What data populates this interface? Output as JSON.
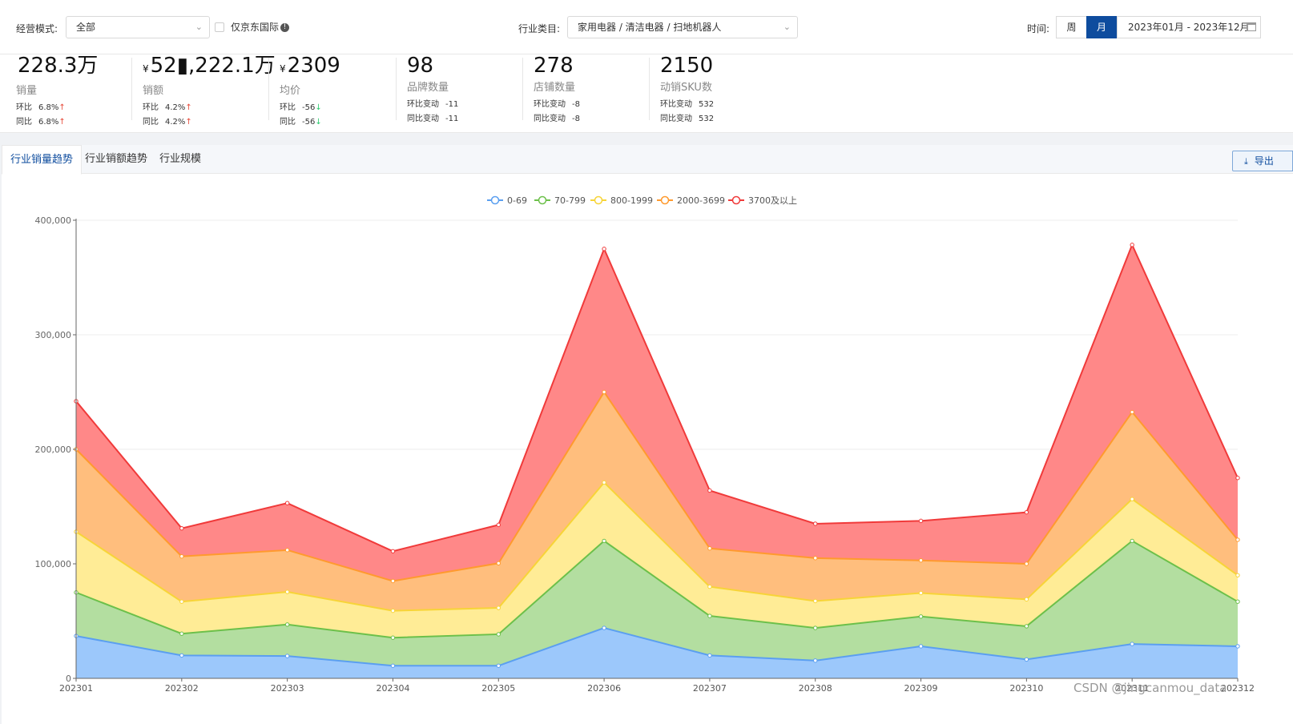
{
  "filters": {
    "mode_label": "经营模式:",
    "mode_value": "全部",
    "jd_intl_label": "仅京东国际",
    "category_label": "行业类目:",
    "category_value": "家用电器 / 清洁电器 / 扫地机器人",
    "time_label": "时间:",
    "week_label": "周",
    "month_label": "月",
    "date_range": "2023年01月 - 2023年12月"
  },
  "stats": [
    {
      "value": "228.3万",
      "currency": "",
      "name": "销量",
      "row1_label": "环比",
      "row1_value": "6.8%",
      "row1_dir": "↑",
      "row2_label": "同比",
      "row2_value": "6.8%",
      "row2_dir": "↑"
    },
    {
      "value": "52▮,222.1万",
      "currency": "¥",
      "name": "销额",
      "row1_label": "环比",
      "row1_value": "4.2%",
      "row1_dir": "↑",
      "row2_label": "同比",
      "row2_value": "4.2%",
      "row2_dir": "↑"
    },
    {
      "value": "2309",
      "currency": "¥",
      "name": "均价",
      "row1_label": "环比",
      "row1_value": "-56",
      "row1_dir": "↓",
      "row2_label": "同比",
      "row2_value": "-56",
      "row2_dir": "↓"
    },
    {
      "value": "98",
      "currency": "",
      "name": "品牌数量",
      "row1_label": "环比变动",
      "row1_value": "-11",
      "row1_dir": "",
      "row2_label": "同比变动",
      "row2_value": "-11",
      "row2_dir": ""
    },
    {
      "value": "278",
      "currency": "",
      "name": "店铺数量",
      "row1_label": "环比变动",
      "row1_value": "-8",
      "row1_dir": "",
      "row2_label": "同比变动",
      "row2_value": "-8",
      "row2_dir": ""
    },
    {
      "value": "2150",
      "currency": "",
      "name": "动销SKU数",
      "row1_label": "环比变动",
      "row1_value": "532",
      "row1_dir": "",
      "row2_label": "同比变动",
      "row2_value": "532",
      "row2_dir": ""
    }
  ],
  "tabs": [
    "行业销量趋势",
    "行业销额趋势",
    "行业规模"
  ],
  "export_label": "导出",
  "watermark": "CSDN @jingcanmou_data",
  "colors": {
    "s0_fill": "#9cc8fb",
    "s0_line": "#5b9ff0",
    "s1_fill": "#b3dea0",
    "s1_line": "#6cc04a",
    "s2_fill": "#ffec96",
    "s2_line": "#f7d438",
    "s3_fill": "#ffbe7d",
    "s3_line": "#ff9a2e",
    "s4_fill": "#ff8888",
    "s4_line": "#f03a3a",
    "accent": "#0e4c9e"
  },
  "chart_data": {
    "type": "area",
    "stacked": true,
    "title": "",
    "xlabel": "",
    "ylabel": "",
    "ylim": [
      0,
      400000
    ],
    "yticks": [
      0,
      100000,
      200000,
      300000,
      400000
    ],
    "ytick_labels": [
      "0",
      "100,000",
      "200,000",
      "300,000",
      "400,000"
    ],
    "grid": true,
    "legend_position": "top-center",
    "categories": [
      "202301",
      "202302",
      "202303",
      "202304",
      "202305",
      "202306",
      "202307",
      "202308",
      "202309",
      "202310",
      "202311",
      "202312"
    ],
    "series": [
      {
        "name": "0-69",
        "values": [
          37000,
          20000,
          19500,
          11000,
          11000,
          44000,
          20000,
          15500,
          28000,
          16500,
          30000,
          28000
        ]
      },
      {
        "name": "70-799",
        "values": [
          38000,
          19000,
          27500,
          24500,
          27500,
          76000,
          34500,
          28500,
          26000,
          29000,
          90000,
          39000
        ]
      },
      {
        "name": "800-1999",
        "values": [
          53000,
          28000,
          28500,
          23500,
          23000,
          51000,
          25500,
          23500,
          20500,
          23500,
          36500,
          23000
        ]
      },
      {
        "name": "2000-3699",
        "values": [
          72000,
          39500,
          36500,
          26000,
          39000,
          79000,
          33500,
          37500,
          28500,
          31000,
          76000,
          31000
        ]
      },
      {
        "name": "3700及以上",
        "values": [
          42000,
          24500,
          41000,
          26000,
          33500,
          125000,
          50500,
          30000,
          34500,
          45000,
          146000,
          54000
        ]
      }
    ]
  }
}
